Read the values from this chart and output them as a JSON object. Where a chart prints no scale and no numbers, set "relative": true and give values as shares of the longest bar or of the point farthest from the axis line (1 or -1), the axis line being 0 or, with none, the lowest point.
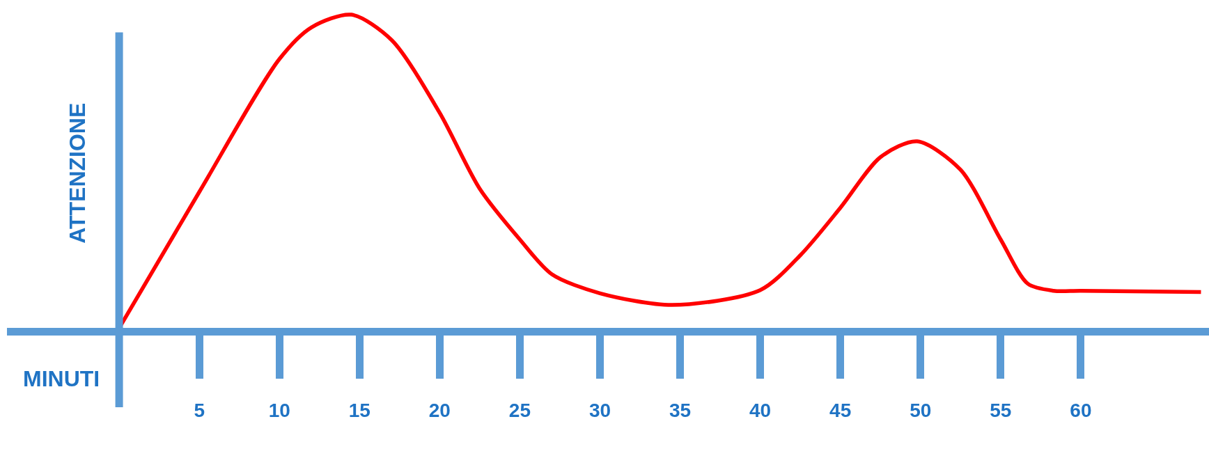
{
  "chart_data": {
    "type": "line",
    "relative": true,
    "xlabel": "MINUTI",
    "ylabel": "ATTENZIONE",
    "x": [
      0,
      5,
      10,
      12,
      14.5,
      17,
      20,
      22.5,
      25,
      27,
      30,
      34.5,
      40,
      42.5,
      45,
      47.5,
      49.8,
      52.5,
      55,
      56.7,
      58.3,
      60,
      67.5
    ],
    "series": [
      {
        "color": "#ff0000",
        "values": [
          0.01,
          0.44,
          0.86,
          0.96,
          1,
          0.92,
          0.69,
          0.45,
          0.29,
          0.18,
          0.12,
          0.083,
          0.13,
          0.24,
          0.39,
          0.55,
          0.6,
          0.51,
          0.29,
          0.15,
          0.128,
          0.128,
          0.124
        ]
      }
    ],
    "xlim": [
      -7,
      68
    ],
    "xticks": [
      5,
      10,
      15,
      20,
      25,
      30,
      35,
      40,
      45,
      50,
      55,
      60
    ],
    "ref_lines": [
      {
        "axis": "x",
        "value": 0,
        "color": "#5b9bd5"
      }
    ],
    "grid": false,
    "marker": "none",
    "line_style": "solid"
  }
}
